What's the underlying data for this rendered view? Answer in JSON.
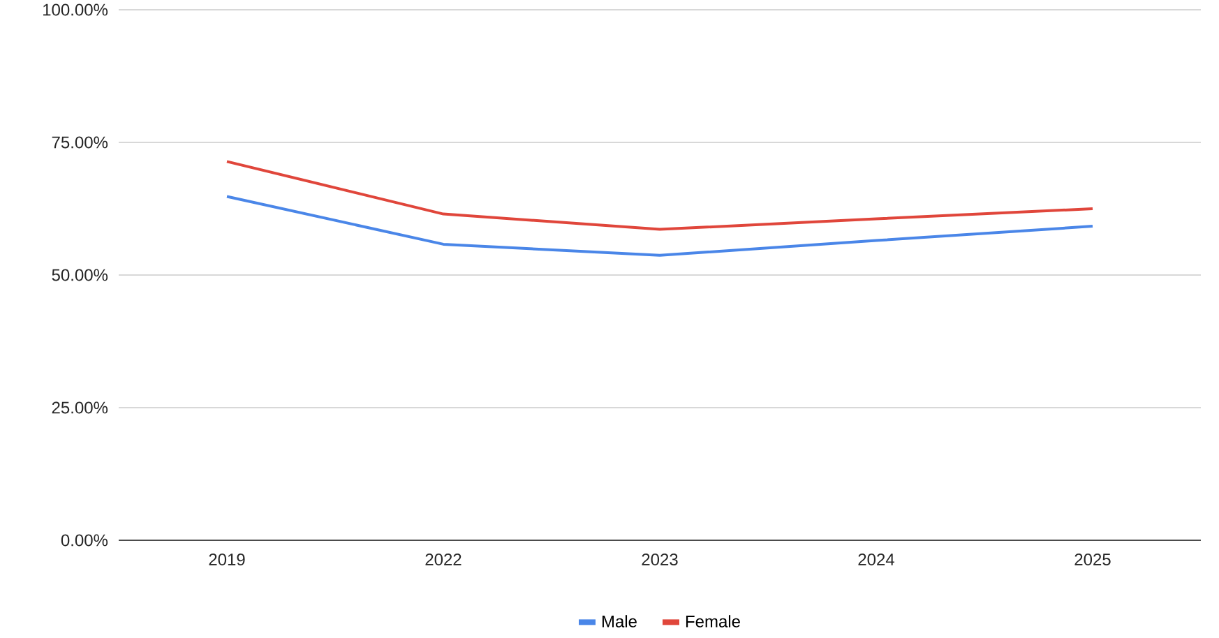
{
  "chart_data": {
    "type": "line",
    "categories": [
      "2019",
      "2022",
      "2023",
      "2024",
      "2025"
    ],
    "series": [
      {
        "name": "Male",
        "color": "#4a86e8",
        "values": [
          64.8,
          55.8,
          53.7,
          56.5,
          59.2
        ]
      },
      {
        "name": "Female",
        "color": "#e0463b",
        "values": [
          71.4,
          61.5,
          58.6,
          60.6,
          62.5
        ]
      }
    ],
    "ylim": [
      0,
      100
    ],
    "yticks": [
      {
        "value": 0,
        "label": "0.00%"
      },
      {
        "value": 25,
        "label": "25.00%"
      },
      {
        "value": 50,
        "label": "50.00%"
      },
      {
        "value": 75,
        "label": "75.00%"
      },
      {
        "value": 100,
        "label": "100.00%"
      }
    ],
    "grid": "y",
    "legend": "bottom",
    "marker": "none",
    "line_style": "solid"
  }
}
